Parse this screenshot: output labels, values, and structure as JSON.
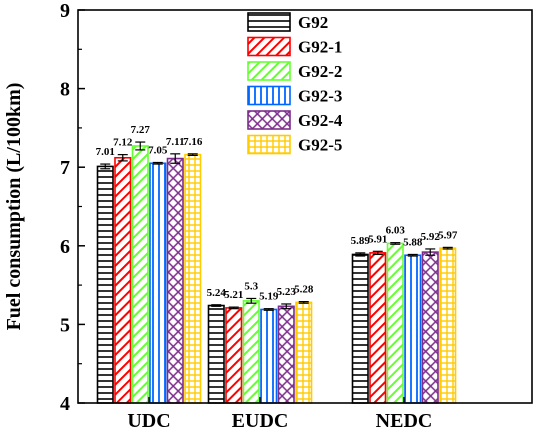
{
  "chart_data": {
    "type": "bar",
    "ylabel": "Fuel consumption (L/100km)",
    "xlabel": "",
    "ylim": [
      4,
      9
    ],
    "yticks": [
      4,
      5,
      6,
      7,
      8,
      9
    ],
    "categories": [
      "UDC",
      "EUDC",
      "NEDC"
    ],
    "legend_position": "top-center",
    "grid": false,
    "series": [
      {
        "name": "G92",
        "color": "#000000",
        "pattern": "horizontal",
        "values": [
          7.01,
          5.24,
          5.89
        ],
        "labels": [
          "7.01",
          "5.24",
          "5.89"
        ],
        "errors": [
          0.03,
          0.01,
          0.02
        ]
      },
      {
        "name": "G92-1",
        "color": "#ff0000",
        "pattern": "diagonal",
        "values": [
          7.12,
          5.21,
          5.91
        ],
        "labels": [
          "7.12",
          "5.21",
          "5.91"
        ],
        "errors": [
          0.04,
          0.01,
          0.02
        ]
      },
      {
        "name": "G92-2",
        "color": "#66ff33",
        "pattern": "diagonal",
        "values": [
          7.27,
          5.3,
          6.03
        ],
        "labels": [
          "7.27",
          "5.3",
          "6.03"
        ],
        "errors": [
          0.05,
          0.03,
          0.01
        ]
      },
      {
        "name": "G92-3",
        "color": "#0066ff",
        "pattern": "vertical",
        "values": [
          7.05,
          5.19,
          5.88
        ],
        "labels": [
          "7.05",
          "5.19",
          "5.88"
        ],
        "errors": [
          0.01,
          0.01,
          0.01
        ]
      },
      {
        "name": "G92-4",
        "color": "#7b2d8b",
        "pattern": "cross",
        "values": [
          7.11,
          5.23,
          5.92
        ],
        "labels": [
          "7.11",
          "5.23",
          "5.92"
        ],
        "errors": [
          0.06,
          0.03,
          0.04
        ]
      },
      {
        "name": "G92-5",
        "color": "#ffcc00",
        "pattern": "grid",
        "values": [
          7.16,
          5.28,
          5.97
        ],
        "labels": [
          "7.16",
          "5.28",
          "5.97"
        ],
        "errors": [
          0.01,
          0.01,
          0.01
        ]
      }
    ]
  }
}
